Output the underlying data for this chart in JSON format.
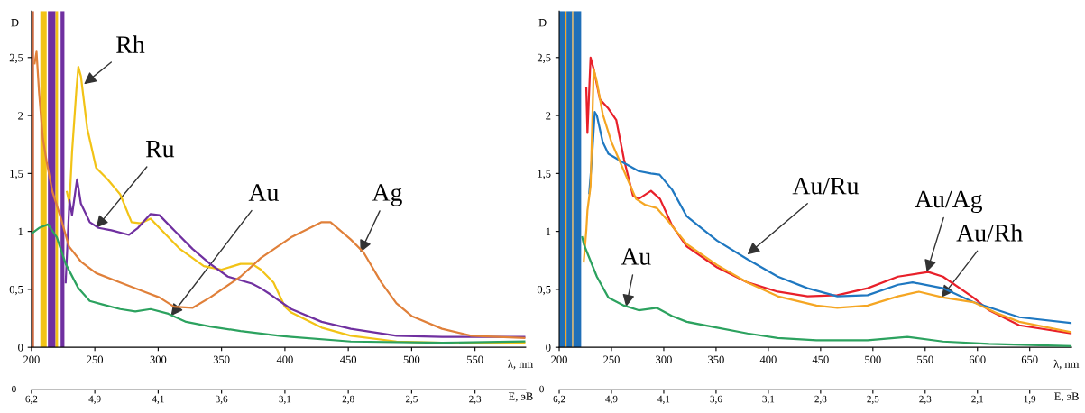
{
  "chart_data": [
    {
      "type": "line",
      "ylabel": "D",
      "xlabel": "λ, nm",
      "x2label": "E, эВ",
      "xlim": [
        200,
        590
      ],
      "xticks": [
        200,
        250,
        300,
        350,
        400,
        450,
        500,
        550
      ],
      "ylim": [
        0,
        2.9
      ],
      "yticks": [
        0,
        {
          "value": 0.5,
          "label": "0,5"
        },
        1,
        {
          "value": 1.5,
          "label": "1,5"
        },
        2,
        {
          "value": 2.5,
          "label": "2,5"
        }
      ],
      "grid": false,
      "legend": false,
      "bands": [
        {
          "axis": "x",
          "from": 200,
          "to": 202,
          "color": "#c8643c"
        },
        {
          "axis": "x",
          "from": 207,
          "to": 212,
          "color": "#f2c316"
        },
        {
          "axis": "x",
          "from": 213,
          "to": 219,
          "color": "#7030a0"
        },
        {
          "axis": "x",
          "from": 219,
          "to": 221,
          "color": "#f2c316"
        },
        {
          "axis": "x",
          "from": 223,
          "to": 226,
          "color": "#7030a0"
        }
      ],
      "series": [
        {
          "color": "#f2c316",
          "x": [
            228,
            230,
            232,
            235.5,
            237,
            239,
            244,
            251,
            260,
            270,
            279,
            286,
            294,
            301,
            317,
            336,
            350,
            365,
            374,
            381,
            391,
            400,
            405,
            429,
            452,
            488,
            524,
            589
          ],
          "values": [
            1.34,
            1.24,
            1.68,
            2.23,
            2.42,
            2.34,
            1.89,
            1.55,
            1.45,
            1.32,
            1.08,
            1.07,
            1.11,
            1.03,
            0.85,
            0.7,
            0.67,
            0.72,
            0.72,
            0.67,
            0.56,
            0.35,
            0.3,
            0.17,
            0.1,
            0.05,
            0.04,
            0.04
          ]
        },
        {
          "color": "#7030a0",
          "x": [
            227,
            230,
            232,
            236,
            239,
            246,
            253,
            263,
            277,
            284,
            294,
            301,
            312.5,
            327,
            341,
            355,
            374,
            381,
            388,
            405,
            429,
            452,
            488,
            524,
            589
          ],
          "values": [
            0.56,
            1.27,
            1.14,
            1.45,
            1.24,
            1.08,
            1.03,
            1.01,
            0.97,
            1.03,
            1.15,
            1.14,
            1.01,
            0.85,
            0.72,
            0.61,
            0.55,
            0.51,
            0.46,
            0.33,
            0.22,
            0.16,
            0.1,
            0.09,
            0.09
          ]
        },
        {
          "color": "#2ca25f",
          "x": [
            200,
            206,
            213,
            220,
            227,
            237,
            246,
            256,
            270,
            282,
            294,
            308,
            322,
            341,
            365,
            395.5,
            405,
            452,
            524,
            589
          ],
          "values": [
            0.98,
            1.03,
            1.06,
            0.95,
            0.72,
            0.51,
            0.4,
            0.37,
            0.33,
            0.31,
            0.33,
            0.29,
            0.22,
            0.18,
            0.14,
            0.1,
            0.09,
            0.05,
            0.04,
            0.05
          ]
        },
        {
          "color": "#e0803a",
          "x": [
            202.5,
            204,
            206,
            209,
            212,
            216.6,
            222.5,
            229.6,
            239,
            251,
            270,
            289,
            301,
            312.5,
            327,
            341,
            365,
            381,
            405,
            429,
            436,
            452,
            462,
            476,
            488,
            500,
            524,
            547,
            589
          ],
          "values": [
            2.45,
            2.55,
            2.2,
            1.8,
            1.6,
            1.34,
            1.14,
            0.87,
            0.74,
            0.64,
            0.56,
            0.48,
            0.43,
            0.35,
            0.34,
            0.43,
            0.61,
            0.77,
            0.95,
            1.08,
            1.08,
            0.93,
            0.82,
            0.56,
            0.38,
            0.27,
            0.16,
            0.1,
            0.08
          ]
        }
      ],
      "annotations": [
        {
          "text": "Rh",
          "x": 241.5,
          "y": 2.27
        },
        {
          "text": "Ru",
          "x": 251,
          "y": 1.03
        },
        {
          "text": "Au",
          "x": 310,
          "y": 0.27
        },
        {
          "text": "Ag",
          "x": 459.6,
          "y": 0.82
        },
        "0",
        "6,2",
        "4,9",
        "4,1",
        "3,6",
        "3,1",
        "2,8",
        "2,5",
        "2,3"
      ]
    },
    {
      "type": "line",
      "ylabel": "D",
      "xlabel": "λ, nm",
      "x2label": "E, эВ",
      "xlim": [
        200,
        690
      ],
      "xticks": [
        200,
        250,
        300,
        350,
        400,
        450,
        500,
        550,
        600,
        650
      ],
      "ylim": [
        0,
        2.9
      ],
      "yticks": [
        0,
        {
          "value": 0.5,
          "label": "0,5"
        },
        1,
        {
          "value": 1.5,
          "label": "1,5"
        },
        2,
        {
          "value": 2.5,
          "label": "2,5"
        }
      ],
      "grid": false,
      "legend": false,
      "bands": [
        {
          "axis": "x",
          "from": 200,
          "to": 206,
          "color": "#1f6fb8"
        },
        {
          "axis": "x",
          "from": 206,
          "to": 207,
          "color": "#f5a623"
        },
        {
          "axis": "x",
          "from": 207,
          "to": 212.5,
          "color": "#1f6fb8"
        },
        {
          "axis": "x",
          "from": 212.5,
          "to": 213.5,
          "color": "#f5a623"
        },
        {
          "axis": "x",
          "from": 213.5,
          "to": 221,
          "color": "#1f6fb8"
        }
      ],
      "series": [
        {
          "color": "#e8202a",
          "x": [
            225.9,
            227,
            230,
            233,
            238.9,
            247,
            254.6,
            262,
            270.5,
            276,
            287.8,
            296.4,
            308,
            322,
            351,
            380,
            409,
            437.5,
            466,
            495,
            524,
            553,
            567,
            596,
            611,
            640,
            690
          ],
          "values": [
            2.24,
            1.85,
            2.5,
            2.4,
            2.14,
            2.06,
            1.96,
            1.62,
            1.31,
            1.28,
            1.35,
            1.28,
            1.05,
            0.87,
            0.69,
            0.56,
            0.48,
            0.44,
            0.45,
            0.51,
            0.61,
            0.65,
            0.61,
            0.43,
            0.32,
            0.19,
            0.12
          ]
        },
        {
          "color": "#1f78c1",
          "x": [
            228.7,
            231.5,
            234,
            236,
            241.7,
            247,
            262,
            276,
            287.8,
            296,
            308,
            322,
            351,
            380,
            409,
            437.5,
            466,
            495,
            524,
            538,
            567,
            596,
            640,
            690
          ],
          "values": [
            1.33,
            1.65,
            2.03,
            2.0,
            1.77,
            1.67,
            1.59,
            1.52,
            1.5,
            1.49,
            1.36,
            1.13,
            0.92,
            0.76,
            0.61,
            0.51,
            0.44,
            0.45,
            0.54,
            0.56,
            0.51,
            0.39,
            0.26,
            0.21
          ]
        },
        {
          "color": "#f5a623",
          "x": [
            223.5,
            226,
            227,
            230,
            233,
            236,
            241.7,
            250,
            262,
            273.5,
            282,
            293.5,
            305,
            322,
            351,
            380,
            409,
            446,
            466,
            495,
            524,
            544,
            567,
            596,
            617,
            640,
            690
          ],
          "values": [
            0.74,
            1.02,
            1.18,
            1.39,
            2.4,
            2.29,
            2.01,
            1.77,
            1.52,
            1.28,
            1.23,
            1.2,
            1.08,
            0.89,
            0.71,
            0.56,
            0.44,
            0.36,
            0.34,
            0.36,
            0.44,
            0.48,
            0.43,
            0.39,
            0.3,
            0.22,
            0.13
          ]
        },
        {
          "color": "#2ca25f",
          "x": [
            222,
            223.5,
            236,
            247,
            262,
            276,
            293.5,
            308,
            322,
            351,
            380,
            409,
            446,
            495,
            533,
            567,
            611,
            690
          ],
          "values": [
            0.95,
            0.89,
            0.61,
            0.43,
            0.36,
            0.32,
            0.34,
            0.27,
            0.22,
            0.17,
            0.12,
            0.08,
            0.06,
            0.06,
            0.09,
            0.05,
            0.03,
            0.01
          ]
        }
      ],
      "annotations": [
        {
          "text": "Au/Ru",
          "x": 380,
          "y": 0.8
        },
        {
          "text": "Au",
          "x": 264,
          "y": 0.35
        },
        {
          "text": "Au/Ag",
          "x": 551.6,
          "y": 0.65
        },
        {
          "text": "Au/Rh",
          "x": 565.6,
          "y": 0.43
        },
        "0",
        "6,2",
        "4,9",
        "4,1",
        "3,6",
        "3,1",
        "2,8",
        "2,5",
        "2,3",
        "2,1",
        "1,9"
      ]
    }
  ]
}
